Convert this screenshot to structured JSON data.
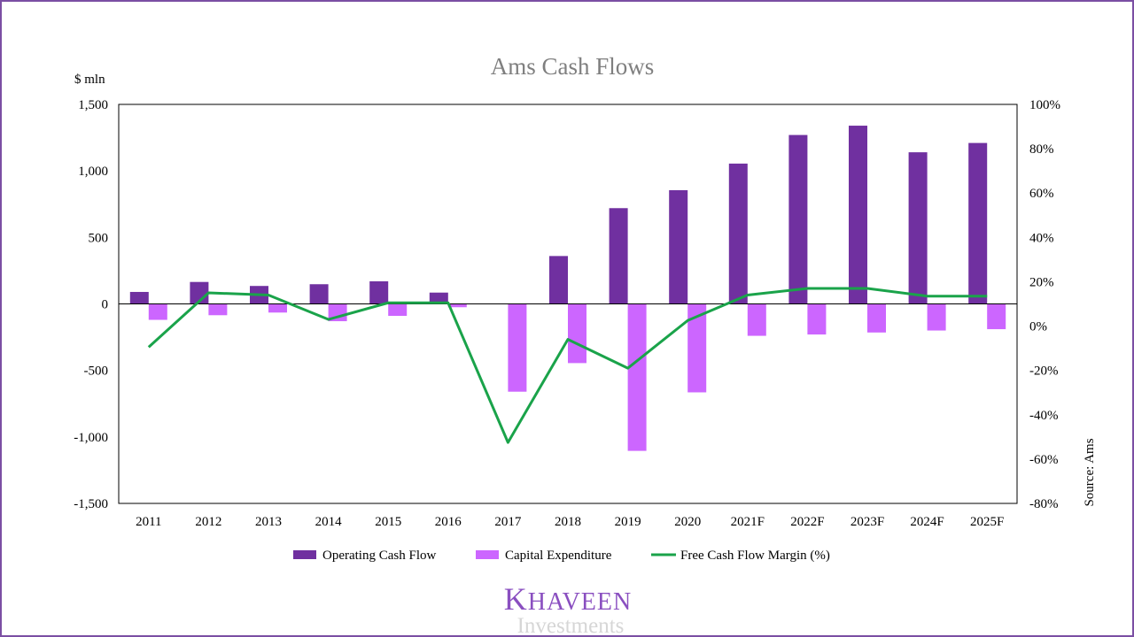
{
  "chart_data": {
    "type": "bar",
    "title": "Ams Cash Flows",
    "ylabel_left": "$ mln",
    "ylabel_right": "Source: Ams",
    "categories": [
      "2011",
      "2012",
      "2013",
      "2014",
      "2015",
      "2016",
      "2017",
      "2018",
      "2019",
      "2020",
      "2021F",
      "2022F",
      "2023F",
      "2024F",
      "2025F"
    ],
    "series": [
      {
        "name": "Operating Cash Flow",
        "type": "bar",
        "axis": "left",
        "color": "#7030a0",
        "values": [
          90,
          165,
          135,
          148,
          170,
          85,
          0,
          360,
          720,
          855,
          1055,
          1270,
          1340,
          1140,
          1210
        ]
      },
      {
        "name": "Capital Expenditure",
        "type": "bar",
        "axis": "left",
        "color": "#cc66ff",
        "values": [
          -120,
          -85,
          -65,
          -130,
          -90,
          -25,
          -660,
          -445,
          -1105,
          -665,
          -240,
          -230,
          -215,
          -200,
          -190
        ]
      },
      {
        "name": "Free Cash Flow Margin (%)",
        "type": "line",
        "axis": "right",
        "color": "#1aa34a",
        "values": [
          -9.5,
          15,
          14,
          3,
          10.5,
          10.5,
          -52.5,
          -6,
          -19,
          2.5,
          14,
          17,
          17,
          13.5,
          13.5
        ]
      }
    ],
    "ylim_left": [
      -1500,
      1500
    ],
    "yticks_left": [
      -1500,
      -1000,
      -500,
      0,
      500,
      1000,
      1500
    ],
    "ytick_labels_left": [
      "-1,500",
      "-1,000",
      "-500",
      "0",
      "500",
      "1,000",
      "1,500"
    ],
    "ylim_right": [
      -80,
      100
    ],
    "yticks_right": [
      -80,
      -60,
      -40,
      -20,
      0,
      20,
      40,
      60,
      80,
      100
    ],
    "ytick_labels_right": [
      "-80%",
      "-60%",
      "-40%",
      "-20%",
      "0%",
      "20%",
      "40%",
      "60%",
      "80%",
      "100%"
    ],
    "legend_position": "bottom",
    "grid": false
  },
  "brand": {
    "name": "KHAVEEN",
    "name_initial": "K",
    "name_rest": "HAVEEN",
    "subtitle": "Investments"
  }
}
